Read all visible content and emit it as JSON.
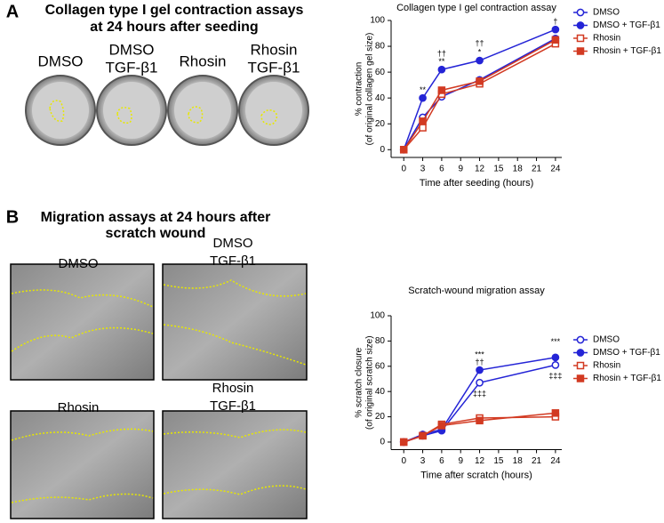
{
  "figure": {
    "panels": [
      {
        "letter": "A",
        "heading": [
          "Collagen type I gel contraction assays",
          "at 24 hours after seeding"
        ],
        "images": [
          [
            "DMSO"
          ],
          [
            "DMSO",
            "TGF-β1"
          ],
          [
            "Rhosin"
          ],
          [
            "Rhosin",
            "TGF-β1"
          ]
        ]
      },
      {
        "letter": "B",
        "heading": [
          "Migration assays at 24 hours after",
          "scratch wound"
        ],
        "images": [
          [
            "DMSO"
          ],
          [
            "DMSO",
            "TGF-β1"
          ],
          [
            "Rhosin"
          ],
          [
            "Rhosin",
            "TGF-β1"
          ]
        ]
      }
    ]
  },
  "chart_data": [
    {
      "type": "line",
      "title": "Collagen type I gel contraction assay",
      "xlabel": "Time after seeding (hours)",
      "ylabel": [
        "% contraction",
        "(of original collagen gel size)"
      ],
      "x": [
        0,
        3,
        6,
        12,
        24
      ],
      "xlim": [
        -2,
        25
      ],
      "xticks": [
        0,
        3,
        6,
        9,
        12,
        15,
        18,
        21,
        24
      ],
      "ylim": [
        -6,
        100
      ],
      "yticks": [
        0,
        20,
        40,
        60,
        80,
        100
      ],
      "series": [
        {
          "name": "DMSO",
          "color": "#2424d6",
          "marker": "circle",
          "filled": false,
          "values": [
            0,
            25,
            41,
            54,
            86
          ]
        },
        {
          "name": "DMSO + TGF-β1",
          "color": "#2424d6",
          "marker": "circle",
          "filled": true,
          "values": [
            0,
            40,
            62,
            69,
            93
          ]
        },
        {
          "name": "Rhosin",
          "color": "#d23a22",
          "marker": "square",
          "filled": false,
          "values": [
            0,
            17,
            43,
            51,
            82
          ]
        },
        {
          "name": "Rhosin + TGF-β1",
          "color": "#d23a22",
          "marker": "square",
          "filled": true,
          "values": [
            0,
            22,
            46,
            53,
            85
          ]
        }
      ],
      "annotations": [
        {
          "text": "**",
          "x": 3,
          "y": 46
        },
        {
          "text": "††",
          "x": 6,
          "y": 74
        },
        {
          "text": "**",
          "x": 6,
          "y": 68
        },
        {
          "text": "††",
          "x": 12,
          "y": 82
        },
        {
          "text": "*",
          "x": 12,
          "y": 75
        },
        {
          "text": "†",
          "x": 24,
          "y": 99
        }
      ]
    },
    {
      "type": "line",
      "title": "Scratch-wound migration assay",
      "xlabel": "Time after scratch (hours)",
      "ylabel": [
        "% scratch closure",
        "(of original scratch size)"
      ],
      "x": [
        0,
        3,
        6,
        12,
        24
      ],
      "xlim": [
        -2,
        25
      ],
      "xticks": [
        0,
        3,
        6,
        9,
        12,
        15,
        18,
        21,
        24
      ],
      "ylim": [
        -6,
        100
      ],
      "yticks": [
        0,
        20,
        40,
        60,
        80,
        100
      ],
      "series": [
        {
          "name": "DMSO",
          "color": "#2424d6",
          "marker": "circle",
          "filled": false,
          "values": [
            0,
            5,
            9,
            47,
            61
          ]
        },
        {
          "name": "DMSO + TGF-β1",
          "color": "#2424d6",
          "marker": "circle",
          "filled": true,
          "values": [
            0,
            6,
            10,
            57,
            67
          ]
        },
        {
          "name": "Rhosin",
          "color": "#d23a22",
          "marker": "square",
          "filled": false,
          "values": [
            0,
            5,
            14,
            19,
            20
          ]
        },
        {
          "name": "Rhosin + TGF-β1",
          "color": "#d23a22",
          "marker": "square",
          "filled": true,
          "values": [
            0,
            5,
            13,
            17,
            23
          ]
        }
      ],
      "annotations": [
        {
          "text": "***",
          "x": 12,
          "y": 69
        },
        {
          "text": "††",
          "x": 12,
          "y": 63
        },
        {
          "text": "‡‡‡",
          "x": 12,
          "y": 38
        },
        {
          "text": "***",
          "x": 24,
          "y": 79
        },
        {
          "text": "‡‡‡",
          "x": 24,
          "y": 52
        }
      ]
    }
  ]
}
